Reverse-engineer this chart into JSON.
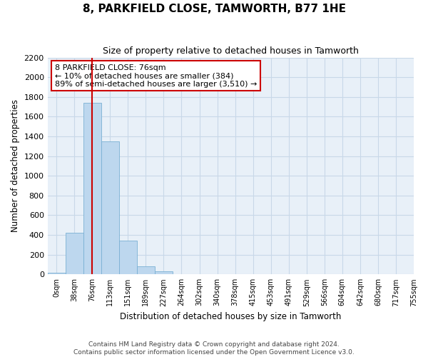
{
  "title": "8, PARKFIELD CLOSE, TAMWORTH, B77 1HE",
  "subtitle": "Size of property relative to detached houses in Tamworth",
  "xlabel": "Distribution of detached houses by size in Tamworth",
  "ylabel": "Number of detached properties",
  "bin_labels": [
    "0sqm",
    "38sqm",
    "76sqm",
    "113sqm",
    "151sqm",
    "189sqm",
    "227sqm",
    "264sqm",
    "302sqm",
    "340sqm",
    "378sqm",
    "415sqm",
    "453sqm",
    "491sqm",
    "529sqm",
    "566sqm",
    "604sqm",
    "642sqm",
    "680sqm",
    "717sqm",
    "755sqm"
  ],
  "bar_heights": [
    20,
    420,
    1740,
    1350,
    340,
    80,
    30,
    5,
    0,
    0,
    0,
    0,
    0,
    0,
    0,
    0,
    0,
    0,
    0,
    0
  ],
  "bar_color": "#bdd7ee",
  "bar_edge_color": "#7ab0d4",
  "grid_color": "#c8d8e8",
  "background_color": "#e8f0f8",
  "vline_x": 2,
  "vline_color": "#cc0000",
  "annotation_text": "8 PARKFIELD CLOSE: 76sqm\n← 10% of detached houses are smaller (384)\n89% of semi-detached houses are larger (3,510) →",
  "annotation_box_color": "#cc0000",
  "ylim": [
    0,
    2200
  ],
  "yticks": [
    0,
    200,
    400,
    600,
    800,
    1000,
    1200,
    1400,
    1600,
    1800,
    2000,
    2200
  ],
  "footer_line1": "Contains HM Land Registry data © Crown copyright and database right 2024.",
  "footer_line2": "Contains public sector information licensed under the Open Government Licence v3.0."
}
